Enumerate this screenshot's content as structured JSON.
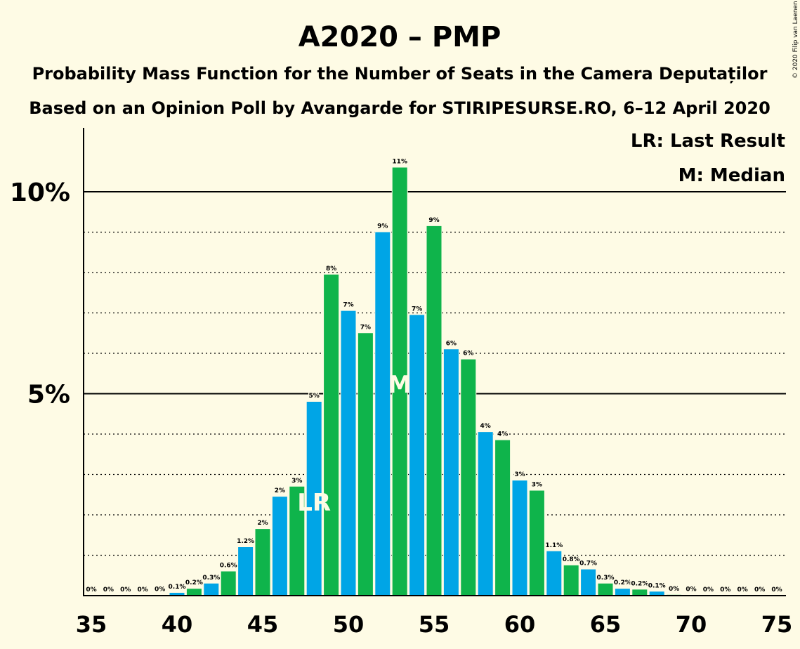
{
  "chart_data": {
    "type": "bar",
    "title": "A2020 – PMP",
    "subtitle": "Probability Mass Function for the Number of Seats in the Camera Deputaților",
    "subtitle2": "Based on an Opinion Poll by Avangarde for STIRIPESURSE.RO, 6–12 April 2020",
    "copyright": "© 2020 Filip van Laenen",
    "legend": [
      "LR: Last Result",
      "M: Median"
    ],
    "legend_position": "top-right",
    "xlim": [
      35,
      75
    ],
    "ylim": [
      0,
      11.5
    ],
    "x_ticks": [
      35,
      40,
      45,
      50,
      55,
      60,
      65,
      70,
      75
    ],
    "y_ticks": [
      {
        "value": 5,
        "label": "5%"
      },
      {
        "value": 10,
        "label": "10%"
      }
    ],
    "minor_gridlines": [
      1,
      2,
      3,
      4,
      6,
      7,
      8,
      9
    ],
    "colors": {
      "blue": "#00a5e6",
      "green": "#0fb44b",
      "background": "#fefbe5"
    },
    "last_result_seat": 48,
    "last_result_label": "LR",
    "median_seat": 53,
    "median_label": "M",
    "bars": [
      {
        "seat": 35,
        "value": 0,
        "label": "0%"
      },
      {
        "seat": 36,
        "value": 0,
        "label": "0%"
      },
      {
        "seat": 37,
        "value": 0,
        "label": "0%"
      },
      {
        "seat": 38,
        "value": 0,
        "label": "0%"
      },
      {
        "seat": 39,
        "value": 0.01,
        "label": "0%"
      },
      {
        "seat": 40,
        "value": 0.07,
        "label": "0.1%"
      },
      {
        "seat": 41,
        "value": 0.17,
        "label": "0.2%"
      },
      {
        "seat": 42,
        "value": 0.3,
        "label": "0.3%"
      },
      {
        "seat": 43,
        "value": 0.6,
        "label": "0.6%"
      },
      {
        "seat": 44,
        "value": 1.2,
        "label": "1.2%"
      },
      {
        "seat": 45,
        "value": 1.65,
        "label": "2%"
      },
      {
        "seat": 46,
        "value": 2.45,
        "label": "2%"
      },
      {
        "seat": 47,
        "value": 2.7,
        "label": "3%"
      },
      {
        "seat": 48,
        "value": 4.8,
        "label": "5%"
      },
      {
        "seat": 49,
        "value": 7.95,
        "label": "8%"
      },
      {
        "seat": 50,
        "value": 7.05,
        "label": "7%"
      },
      {
        "seat": 51,
        "value": 6.5,
        "label": "7%"
      },
      {
        "seat": 52,
        "value": 9.0,
        "label": "9%"
      },
      {
        "seat": 53,
        "value": 10.6,
        "label": "11%"
      },
      {
        "seat": 54,
        "value": 6.95,
        "label": "7%"
      },
      {
        "seat": 55,
        "value": 9.15,
        "label": "9%"
      },
      {
        "seat": 56,
        "value": 6.1,
        "label": "6%"
      },
      {
        "seat": 57,
        "value": 5.85,
        "label": "6%"
      },
      {
        "seat": 58,
        "value": 4.05,
        "label": "4%"
      },
      {
        "seat": 59,
        "value": 3.85,
        "label": "4%"
      },
      {
        "seat": 60,
        "value": 2.85,
        "label": "3%"
      },
      {
        "seat": 61,
        "value": 2.6,
        "label": "3%"
      },
      {
        "seat": 62,
        "value": 1.1,
        "label": "1.1%"
      },
      {
        "seat": 63,
        "value": 0.75,
        "label": "0.8%"
      },
      {
        "seat": 64,
        "value": 0.65,
        "label": "0.7%"
      },
      {
        "seat": 65,
        "value": 0.3,
        "label": "0.3%"
      },
      {
        "seat": 66,
        "value": 0.17,
        "label": "0.2%"
      },
      {
        "seat": 67,
        "value": 0.15,
        "label": "0.2%"
      },
      {
        "seat": 68,
        "value": 0.1,
        "label": "0.1%"
      },
      {
        "seat": 69,
        "value": 0.02,
        "label": "0%"
      },
      {
        "seat": 70,
        "value": 0.01,
        "label": "0%"
      },
      {
        "seat": 71,
        "value": 0,
        "label": "0%"
      },
      {
        "seat": 72,
        "value": 0,
        "label": "0%"
      },
      {
        "seat": 73,
        "value": 0,
        "label": "0%"
      },
      {
        "seat": 74,
        "value": 0,
        "label": "0%"
      },
      {
        "seat": 75,
        "value": 0,
        "label": "0%"
      }
    ]
  }
}
